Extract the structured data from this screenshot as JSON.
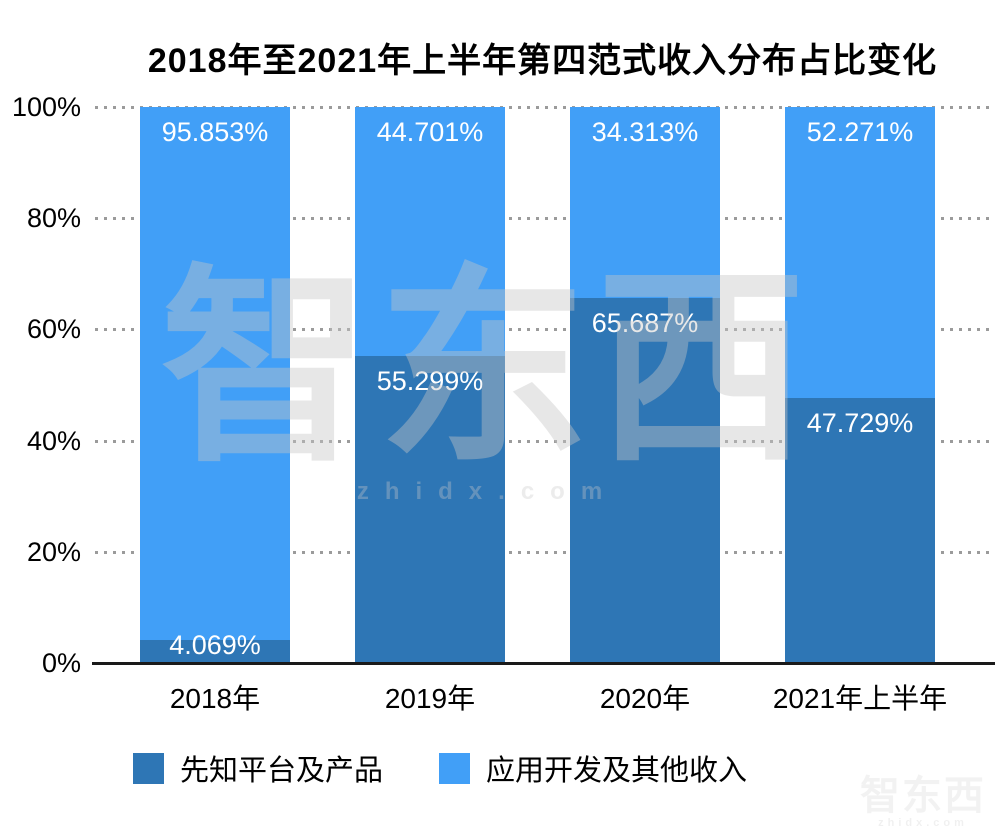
{
  "title": "2018年至2021年上半年第四范式收入分布占比变化",
  "colors": {
    "series_dark": "#2E76B5",
    "series_light": "#419FF7",
    "grid_dots": "#9B9B9B",
    "axis_line": "#1A1A1A",
    "data_label": "#FFFFFF",
    "text": "#000000",
    "watermark_gray": "#C5C5C5"
  },
  "watermark": {
    "logo_text": "智东西",
    "site_text": "zhidx.com"
  },
  "legend": {
    "items": [
      {
        "label": "先知平台及产品",
        "color": "#2E76B5"
      },
      {
        "label": "应用开发及其他收入",
        "color": "#419FF7"
      }
    ]
  },
  "chart_data": {
    "type": "bar",
    "stacked": true,
    "title": "2018年至2021年上半年第四范式收入分布占比变化",
    "categories": [
      "2018年",
      "2019年",
      "2020年",
      "2021年上半年"
    ],
    "series": [
      {
        "name": "先知平台及产品",
        "color": "#2E76B5",
        "values": [
          4.069,
          55.299,
          65.687,
          47.729
        ],
        "labels": [
          "4.069%",
          "55.299%",
          "65.687%",
          "47.729%"
        ]
      },
      {
        "name": "应用开发及其他收入",
        "color": "#419FF7",
        "values": [
          95.853,
          44.701,
          34.313,
          52.271
        ],
        "labels": [
          "95.853%",
          "44.701%",
          "34.313%",
          "52.271%"
        ]
      }
    ],
    "xlabel": "",
    "ylabel": "",
    "ylim": [
      0,
      100
    ],
    "yticks": [
      "0%",
      "20%",
      "40%",
      "60%",
      "80%",
      "100%"
    ],
    "grid": "horizontal-dotted",
    "legend_position": "bottom-left"
  }
}
